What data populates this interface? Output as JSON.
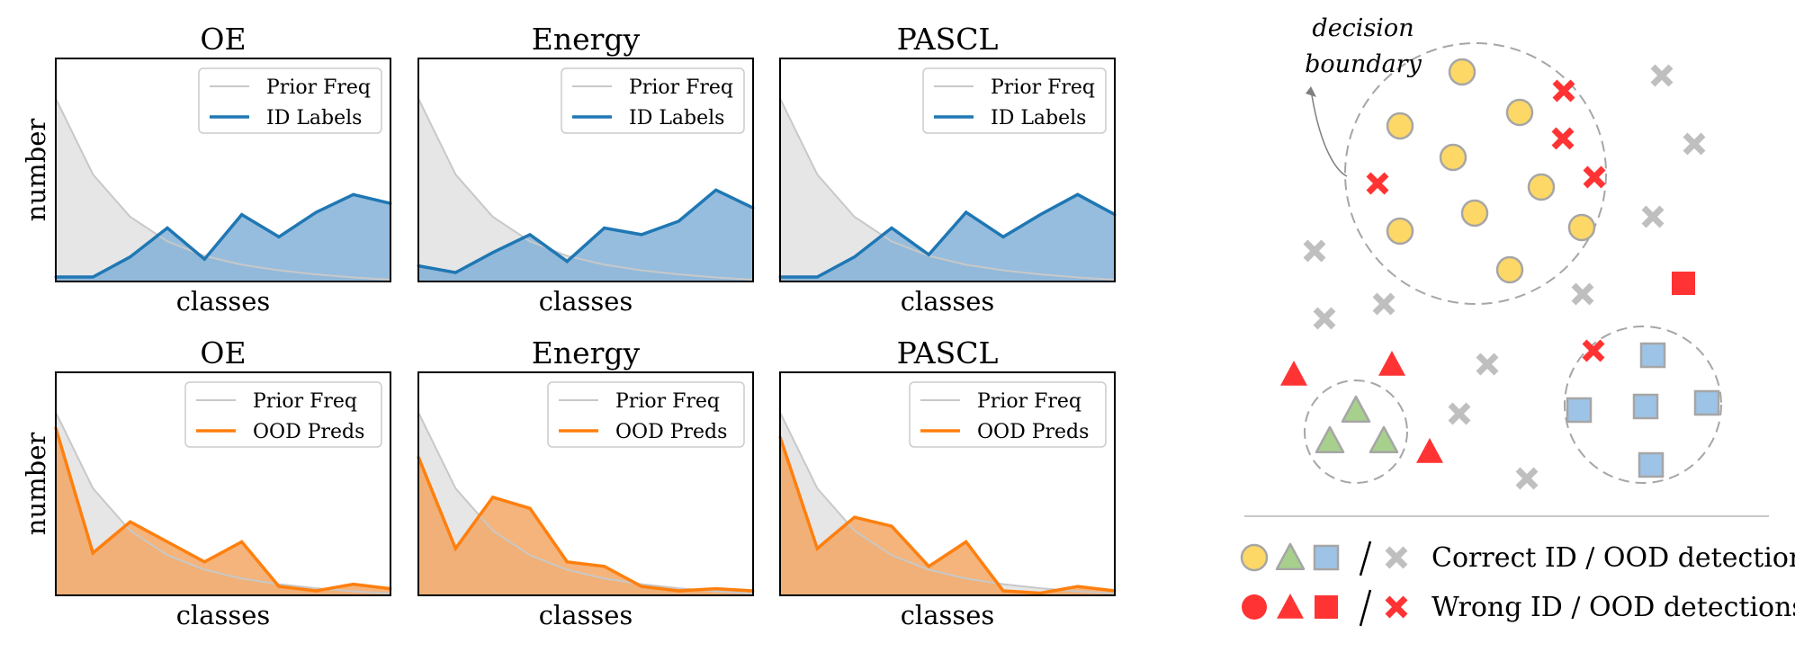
{
  "chart_data": [
    {
      "type": "area",
      "row": "id",
      "title": "OE",
      "xlabel": "classes",
      "ylabel": "number",
      "legend": [
        "Prior Freq",
        "ID Labels"
      ],
      "legend_position": "top-right",
      "x": [
        0,
        1,
        2,
        3,
        4,
        5,
        6,
        7,
        8,
        9
      ],
      "series": [
        {
          "name": "Prior Freq",
          "values": [
            0.82,
            0.48,
            0.29,
            0.18,
            0.115,
            0.075,
            0.05,
            0.032,
            0.018,
            0.008
          ]
        },
        {
          "name": "ID Labels",
          "values": [
            0.02,
            0.02,
            0.11,
            0.24,
            0.1,
            0.3,
            0.2,
            0.31,
            0.39,
            0.35
          ]
        }
      ]
    },
    {
      "type": "area",
      "row": "id",
      "title": "Energy",
      "xlabel": "classes",
      "ylabel": "",
      "legend": [
        "Prior Freq",
        "ID Labels"
      ],
      "legend_position": "top-right",
      "x": [
        0,
        1,
        2,
        3,
        4,
        5,
        6,
        7,
        8,
        9
      ],
      "series": [
        {
          "name": "Prior Freq",
          "values": [
            0.82,
            0.48,
            0.29,
            0.18,
            0.115,
            0.075,
            0.05,
            0.032,
            0.018,
            0.008
          ]
        },
        {
          "name": "ID Labels",
          "values": [
            0.07,
            0.04,
            0.13,
            0.21,
            0.09,
            0.24,
            0.21,
            0.27,
            0.41,
            0.33
          ]
        }
      ]
    },
    {
      "type": "area",
      "row": "id",
      "title": "PASCL",
      "xlabel": "classes",
      "ylabel": "",
      "legend": [
        "Prior Freq",
        "ID Labels"
      ],
      "legend_position": "top-right",
      "x": [
        0,
        1,
        2,
        3,
        4,
        5,
        6,
        7,
        8,
        9
      ],
      "series": [
        {
          "name": "Prior Freq",
          "values": [
            0.82,
            0.48,
            0.29,
            0.18,
            0.115,
            0.075,
            0.05,
            0.032,
            0.018,
            0.008
          ]
        },
        {
          "name": "ID Labels",
          "values": [
            0.02,
            0.02,
            0.11,
            0.24,
            0.12,
            0.31,
            0.2,
            0.3,
            0.39,
            0.3
          ]
        }
      ]
    },
    {
      "type": "area",
      "row": "ood",
      "title": "OE",
      "xlabel": "classes",
      "ylabel": "number",
      "legend": [
        "Prior Freq",
        "OOD Preds"
      ],
      "legend_position": "top-right",
      "x": [
        0,
        1,
        2,
        3,
        4,
        5,
        6,
        7,
        8,
        9
      ],
      "series": [
        {
          "name": "Prior Freq",
          "values": [
            0.82,
            0.48,
            0.29,
            0.18,
            0.115,
            0.075,
            0.05,
            0.032,
            0.018,
            0.008
          ]
        },
        {
          "name": "OOD Preds",
          "values": [
            0.75,
            0.19,
            0.33,
            0.24,
            0.15,
            0.24,
            0.04,
            0.02,
            0.05,
            0.03
          ]
        }
      ]
    },
    {
      "type": "area",
      "row": "ood",
      "title": "Energy",
      "xlabel": "classes",
      "ylabel": "",
      "legend": [
        "Prior Freq",
        "OOD Preds"
      ],
      "legend_position": "top-right",
      "x": [
        0,
        1,
        2,
        3,
        4,
        5,
        6,
        7,
        8,
        9
      ],
      "series": [
        {
          "name": "Prior Freq",
          "values": [
            0.82,
            0.48,
            0.29,
            0.18,
            0.115,
            0.075,
            0.05,
            0.032,
            0.018,
            0.008
          ]
        },
        {
          "name": "OOD Preds",
          "values": [
            0.62,
            0.21,
            0.44,
            0.39,
            0.15,
            0.13,
            0.04,
            0.02,
            0.03,
            0.02
          ]
        }
      ]
    },
    {
      "type": "area",
      "row": "ood",
      "title": "PASCL",
      "xlabel": "classes",
      "ylabel": "",
      "legend": [
        "Prior Freq",
        "OOD Preds"
      ],
      "legend_position": "top-right",
      "x": [
        0,
        1,
        2,
        3,
        4,
        5,
        6,
        7,
        8,
        9
      ],
      "series": [
        {
          "name": "Prior Freq",
          "values": [
            0.82,
            0.48,
            0.29,
            0.18,
            0.115,
            0.075,
            0.05,
            0.032,
            0.018,
            0.008
          ]
        },
        {
          "name": "OOD Preds",
          "values": [
            0.71,
            0.21,
            0.35,
            0.31,
            0.13,
            0.24,
            0.02,
            0.01,
            0.04,
            0.02
          ]
        }
      ]
    }
  ],
  "colors": {
    "prior_line": "#c8c8c8",
    "prior_fill": "#e6e6e6",
    "id_line": "#1f77b4",
    "id_fill": "#7faed5",
    "ood_line": "#ff7f0e",
    "ood_fill": "#f2a35e"
  },
  "diagram": {
    "annotation": [
      "decision",
      "boundary"
    ],
    "legend": [
      {
        "label": "Correct ID / OOD detections",
        "style": "correct"
      },
      {
        "label": "Wrong ID / OOD detections",
        "style": "wrong"
      }
    ],
    "colors": {
      "circle": "#fed866",
      "triangle": "#a7d08c",
      "square": "#9dc3e6",
      "outline": "#a6a6a6",
      "cross": "#bfbfbf",
      "wrong": "#ff3333",
      "boundary": "#a6a6a6"
    }
  }
}
